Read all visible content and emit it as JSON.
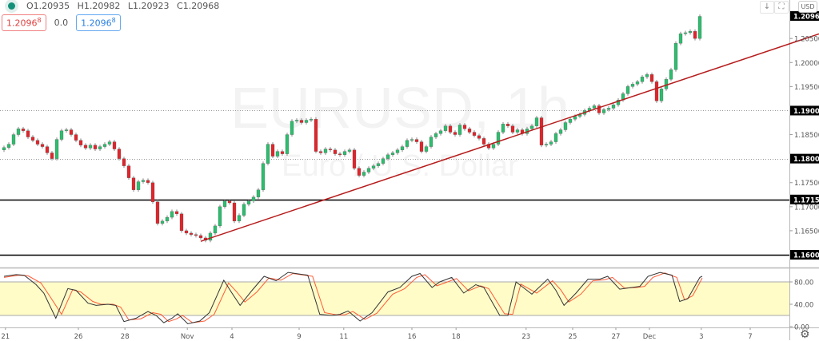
{
  "legend": {
    "open": "O1.20935",
    "high": "H1.20982",
    "low": "L1.20923",
    "close": "C1.20968",
    "sell_price": "1.2096",
    "sell_price_sup": "8",
    "spread": "0.0",
    "buy_price": "1.2096",
    "buy_price_sup": "8"
  },
  "toolbar": {
    "download_icon": "↓",
    "fullscreen_icon": "⛶",
    "currency": "USD",
    "settings_icon": "⚙"
  },
  "watermark": {
    "symbol": "EURUSD, 1h",
    "description": "Euro / U.S. Dollar"
  },
  "colors": {
    "up": "#2dbd6e",
    "down": "#e0252b",
    "trendline": "#b71c1c",
    "stoch_k": "#333333",
    "stoch_d": "#ff5a36",
    "stoch_band": "#fffcc8"
  },
  "chart_data": [
    {
      "type": "candlestick",
      "symbol": "EURUSD",
      "interval": "1h",
      "last_price": "1.20968",
      "ylim": [
        1.1578,
        1.213
      ],
      "y_ticks": [
        "1.20500",
        "1.20000",
        "1.19500",
        "1.18500",
        "1.17500",
        "1.17000",
        "1.16500"
      ],
      "highlighted_levels": [
        {
          "label": "1.19000",
          "value": 1.19,
          "style": "dotted"
        },
        {
          "label": "1.18000",
          "value": 1.18,
          "style": "dotted"
        },
        {
          "label": "1.17150",
          "value": 1.1715,
          "style": "solid"
        },
        {
          "label": "1.16000",
          "value": 1.16,
          "style": "solid"
        }
      ],
      "trendline": [
        {
          "bar": 41,
          "price": 1.1628
        },
        {
          "bar": 163.7,
          "price": 1.2039
        }
      ],
      "closes": [
        1.1823,
        1.183,
        1.185,
        1.1862,
        1.1858,
        1.1845,
        1.1838,
        1.183,
        1.1825,
        1.1812,
        1.18,
        1.184,
        1.1858,
        1.186,
        1.185,
        1.1838,
        1.1828,
        1.1822,
        1.1828,
        1.182,
        1.1825,
        1.183,
        1.1835,
        1.182,
        1.18,
        1.1785,
        1.176,
        1.1735,
        1.1752,
        1.1755,
        1.175,
        1.171,
        1.1665,
        1.167,
        1.1678,
        1.169,
        1.1685,
        1.165,
        1.1645,
        1.1642,
        1.164,
        1.1635,
        1.163,
        1.1645,
        1.166,
        1.17,
        1.1712,
        1.1708,
        1.167,
        1.1682,
        1.1705,
        1.1712,
        1.172,
        1.1735,
        1.179,
        1.183,
        1.1805,
        1.1815,
        1.181,
        1.185,
        1.1878,
        1.188,
        1.1875,
        1.188,
        1.1882,
        1.1815,
        1.1812,
        1.182,
        1.1818,
        1.181,
        1.1808,
        1.1815,
        1.1818,
        1.178,
        1.1765,
        1.1772,
        1.178,
        1.1785,
        1.179,
        1.18,
        1.1808,
        1.1812,
        1.1818,
        1.1825,
        1.1838,
        1.184,
        1.1835,
        1.1815,
        1.1825,
        1.1845,
        1.1852,
        1.1858,
        1.1868,
        1.1855,
        1.185,
        1.187,
        1.1862,
        1.1855,
        1.1848,
        1.1842,
        1.183,
        1.1822,
        1.183,
        1.1855,
        1.1872,
        1.1868,
        1.1855,
        1.186,
        1.1852,
        1.1862,
        1.1868,
        1.1885,
        1.1828,
        1.183,
        1.1835,
        1.1852,
        1.186,
        1.1875,
        1.1882,
        1.1888,
        1.1892,
        1.19,
        1.1905,
        1.191,
        1.1895,
        1.1902,
        1.1905,
        1.1912,
        1.1922,
        1.1935,
        1.195,
        1.1955,
        1.196,
        1.197,
        1.1975,
        1.196,
        1.192,
        1.1945,
        1.1965,
        1.1985,
        1.204,
        1.206,
        1.2062,
        1.2065,
        1.205,
        1.2096
      ]
    },
    {
      "type": "line",
      "indicator": "stochastic",
      "ylim": [
        0,
        100
      ],
      "band": [
        20,
        80
      ],
      "y_ticks": [
        "80.00",
        "40.00",
        "0.00"
      ],
      "k": [
        [
          0,
          90
        ],
        [
          2.5,
          93
        ],
        [
          4.2,
          92
        ],
        [
          6.7,
          75
        ],
        [
          8.3,
          60
        ],
        [
          10.8,
          15
        ],
        [
          13.3,
          68
        ],
        [
          15,
          65
        ],
        [
          17.5,
          42
        ],
        [
          19.2,
          38
        ],
        [
          21.7,
          40
        ],
        [
          23.3,
          38
        ],
        [
          25,
          9
        ],
        [
          27.5,
          15
        ],
        [
          30,
          27
        ],
        [
          31.7,
          20
        ],
        [
          33.3,
          7
        ],
        [
          35,
          15
        ],
        [
          36.2,
          23
        ],
        [
          38.3,
          5
        ],
        [
          40.8,
          10
        ],
        [
          42.8,
          25
        ],
        [
          45.8,
          83
        ],
        [
          47.5,
          60
        ],
        [
          49.2,
          38
        ],
        [
          51.7,
          65
        ],
        [
          54.2,
          90
        ],
        [
          56.7,
          82
        ],
        [
          59.2,
          97
        ],
        [
          63.3,
          92
        ],
        [
          65.8,
          22
        ],
        [
          68.3,
          20
        ],
        [
          70,
          22
        ],
        [
          71.7,
          28
        ],
        [
          74.2,
          10
        ],
        [
          76.7,
          25
        ],
        [
          80,
          62
        ],
        [
          82.5,
          70
        ],
        [
          85,
          90
        ],
        [
          86.7,
          95
        ],
        [
          89.2,
          70
        ],
        [
          90.8,
          80
        ],
        [
          93.3,
          88
        ],
        [
          95.8,
          60
        ],
        [
          98.3,
          75
        ],
        [
          100,
          70
        ],
        [
          103.3,
          20
        ],
        [
          105,
          20
        ],
        [
          106.7,
          80
        ],
        [
          110,
          58
        ],
        [
          113.3,
          85
        ],
        [
          115,
          65
        ],
        [
          116.7,
          38
        ],
        [
          119.2,
          60
        ],
        [
          121.7,
          85
        ],
        [
          124.2,
          85
        ],
        [
          125.8,
          90
        ],
        [
          128.3,
          67
        ],
        [
          130.8,
          70
        ],
        [
          132.5,
          72
        ],
        [
          134.2,
          90
        ],
        [
          136.7,
          97
        ],
        [
          139.2,
          92
        ],
        [
          140.8,
          45
        ],
        [
          142.5,
          50
        ],
        [
          145,
          88
        ],
        [
          145.5,
          90
        ]
      ],
      "d": [
        [
          0,
          88
        ],
        [
          3,
          92
        ],
        [
          5,
          91
        ],
        [
          7.7,
          78
        ],
        [
          9.5,
          55
        ],
        [
          12,
          22
        ],
        [
          14.3,
          66
        ],
        [
          16,
          62
        ],
        [
          18.5,
          45
        ],
        [
          20.2,
          40
        ],
        [
          22.7,
          40
        ],
        [
          24.3,
          35
        ],
        [
          26,
          12
        ],
        [
          28.5,
          14
        ],
        [
          31,
          25
        ],
        [
          32.7,
          22
        ],
        [
          34.3,
          9
        ],
        [
          36,
          14
        ],
        [
          37.2,
          20
        ],
        [
          39.3,
          7
        ],
        [
          41.8,
          10
        ],
        [
          43.8,
          22
        ],
        [
          46.8,
          78
        ],
        [
          48.5,
          62
        ],
        [
          50.2,
          44
        ],
        [
          52.7,
          62
        ],
        [
          55.2,
          87
        ],
        [
          57.7,
          83
        ],
        [
          60.2,
          95
        ],
        [
          64.3,
          90
        ],
        [
          66.8,
          25
        ],
        [
          69.3,
          21
        ],
        [
          71,
          21
        ],
        [
          72.7,
          27
        ],
        [
          75.2,
          13
        ],
        [
          77.7,
          24
        ],
        [
          81,
          58
        ],
        [
          83.5,
          68
        ],
        [
          86,
          88
        ],
        [
          87.7,
          93
        ],
        [
          90.2,
          73
        ],
        [
          91.8,
          78
        ],
        [
          94.3,
          86
        ],
        [
          96.8,
          64
        ],
        [
          99.3,
          73
        ],
        [
          101,
          68
        ],
        [
          104.3,
          23
        ],
        [
          106,
          22
        ],
        [
          107.7,
          76
        ],
        [
          111,
          60
        ],
        [
          114.3,
          82
        ],
        [
          116,
          66
        ],
        [
          117.7,
          44
        ],
        [
          120.2,
          58
        ],
        [
          122.7,
          82
        ],
        [
          125.2,
          84
        ],
        [
          126.8,
          88
        ],
        [
          129.3,
          69
        ],
        [
          131.8,
          70
        ],
        [
          133.5,
          72
        ],
        [
          135.2,
          88
        ],
        [
          137.7,
          96
        ],
        [
          140.2,
          88
        ],
        [
          141.8,
          48
        ],
        [
          143.5,
          55
        ],
        [
          145.5,
          87
        ]
      ]
    }
  ],
  "time_axis": [
    {
      "label": "21",
      "bar": 0.3
    },
    {
      "label": "26",
      "bar": 15.5
    },
    {
      "label": "28",
      "bar": 25.2
    },
    {
      "label": "Nov",
      "bar": 38.2
    },
    {
      "label": "4",
      "bar": 47.5
    },
    {
      "label": "9",
      "bar": 61.5
    },
    {
      "label": "11",
      "bar": 70.8
    },
    {
      "label": "16",
      "bar": 85
    },
    {
      "label": "18",
      "bar": 94.2
    },
    {
      "label": "23",
      "bar": 108.8
    },
    {
      "label": "25",
      "bar": 118.5
    },
    {
      "label": "27",
      "bar": 127.5
    },
    {
      "label": "Dec",
      "bar": 134.5
    },
    {
      "label": "3",
      "bar": 145.3
    },
    {
      "label": "7",
      "bar": 155.5
    }
  ]
}
